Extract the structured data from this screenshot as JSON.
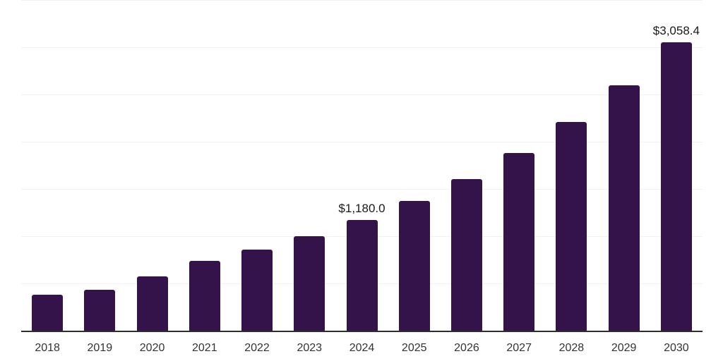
{
  "chart_data": {
    "type": "bar",
    "title": "",
    "xlabel": "",
    "ylabel": "",
    "categories": [
      "2018",
      "2019",
      "2020",
      "2021",
      "2022",
      "2023",
      "2024",
      "2025",
      "2026",
      "2027",
      "2028",
      "2029",
      "2030"
    ],
    "values": [
      388,
      440,
      582,
      745,
      866,
      1004,
      1180.0,
      1383,
      1615,
      1890,
      2215,
      2605,
      3058.4
    ],
    "value_labels": {
      "2024": "$1,180.0",
      "2030": "$3,058.4"
    },
    "ylim": [
      0,
      3500
    ],
    "gridline_step": 500,
    "grid": "horizontal",
    "legend": "none",
    "colors": {
      "bar": "#34124a",
      "axis_line": "#2e2e2e",
      "gridline": "#f2f2f2",
      "value_label_text": "#1a1a1a",
      "tick_label_text": "#333333",
      "background": "#ffffff"
    }
  }
}
